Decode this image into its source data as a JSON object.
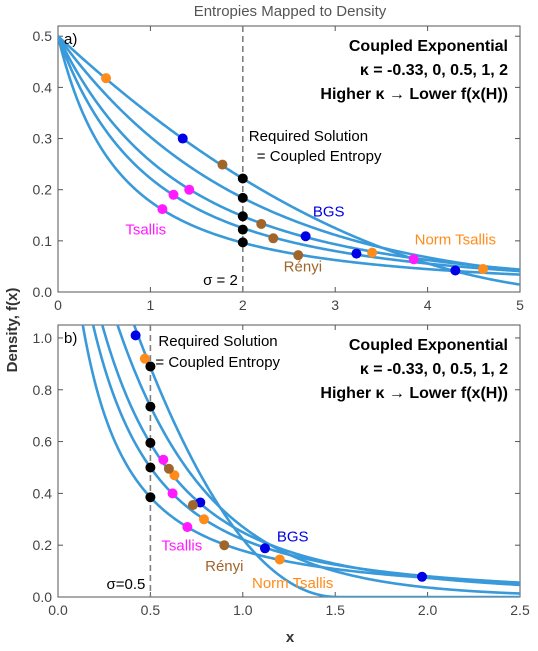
{
  "title": "Entropies Mapped to Density",
  "ylabel": "Density, f(x)",
  "xlabel": "x",
  "colors": {
    "curve": "#3a9ad9",
    "frame": "#555555",
    "guide": "#808080",
    "BGS": "#0000e6",
    "Norm Tsallis": "#ff8c1a",
    "Renyi": "#a0652a",
    "Tsallis": "#ff1aff",
    "Required": "#000000"
  },
  "chart_data": [
    {
      "type": "line",
      "panel_label": "a)",
      "x_range": [
        0,
        5
      ],
      "y_range": [
        0,
        0.52
      ],
      "xticks": [
        0,
        1,
        2,
        3,
        4,
        5
      ],
      "yticks": [
        0,
        0.1,
        0.2,
        0.3,
        0.4,
        0.5
      ],
      "ytick_labels": [
        "0.0",
        "0.1",
        "0.2",
        "0.3",
        "0.4",
        "0.5"
      ],
      "sigma": 2,
      "sigma_label": "σ = 2",
      "kappas": [
        -0.33,
        0,
        0.5,
        1,
        2
      ],
      "info": [
        "Coupled Exponential",
        "κ = -0.33, 0, 0.5, 1, 2",
        "Higher κ → Lower f(x(H))"
      ],
      "required_label": [
        "Required Solution",
        "= Coupled Entropy"
      ],
      "points": {
        "Required": [
          [
            2,
            0.222
          ],
          [
            2,
            0.184
          ],
          [
            2,
            0.148
          ],
          [
            2,
            0.122
          ],
          [
            2,
            0.097
          ]
        ],
        "BGS": [
          [
            1.35,
            0.3
          ],
          [
            2.68,
            0.109
          ],
          [
            3.23,
            0.075
          ],
          [
            4.3,
            0.042
          ]
        ],
        "Norm Tsallis": [
          [
            0.52,
            0.418
          ],
          [
            3.4,
            0.077
          ],
          [
            4.6,
            0.045
          ]
        ],
        "Renyi": [
          [
            1.78,
            0.249
          ],
          [
            2.2,
            0.133
          ],
          [
            2.33,
            0.105
          ],
          [
            2.6,
            0.072
          ]
        ],
        "Tsallis": [
          [
            1.13,
            0.162
          ],
          [
            1.25,
            0.19
          ],
          [
            1.42,
            0.2
          ],
          [
            3.85,
            0.064
          ]
        ]
      },
      "series_labels": [
        {
          "name": "BGS",
          "text": "BGS",
          "x": 2.93,
          "y": 0.148
        },
        {
          "name": "Tsallis",
          "text": "Tsallis",
          "x": 0.95,
          "y": 0.112
        },
        {
          "name": "Renyi",
          "text": "Rényi",
          "x": 2.65,
          "y": 0.04
        },
        {
          "name": "Norm Tsallis",
          "text": "Norm Tsallis",
          "x": 4.3,
          "y": 0.093
        }
      ]
    },
    {
      "type": "line",
      "panel_label": "b)",
      "x_range": [
        0,
        2.5
      ],
      "y_range": [
        0,
        1.05
      ],
      "xticks": [
        0,
        0.5,
        1,
        1.5,
        2,
        2.5
      ],
      "xtick_labels": [
        "0.0",
        "0.5",
        "1.0",
        "1.5",
        "2.0",
        "2.5"
      ],
      "yticks": [
        0,
        0.2,
        0.4,
        0.6,
        0.8,
        1
      ],
      "ytick_labels": [
        "0.0",
        "0.2",
        "0.4",
        "0.6",
        "0.8",
        "1.0"
      ],
      "sigma": 0.5,
      "sigma_label": "σ=0.5",
      "kappas": [
        -0.33,
        0,
        0.5,
        1,
        2
      ],
      "info": [
        "Coupled Exponential",
        "κ = -0.33, 0, 0.5, 1, 2",
        "Higher κ → Lower f(x(H))"
      ],
      "required_label": [
        "Required Solution",
        "= Coupled Entropy"
      ],
      "points": {
        "Required": [
          [
            0.5,
            0.89
          ],
          [
            0.5,
            0.735
          ],
          [
            0.5,
            0.595
          ],
          [
            0.5,
            0.5
          ],
          [
            0.5,
            0.385
          ]
        ],
        "BGS": [
          [
            0.42,
            1.01
          ],
          [
            0.77,
            0.365
          ],
          [
            1.12,
            0.188
          ],
          [
            1.97,
            0.078
          ]
        ],
        "Norm Tsallis": [
          [
            0.47,
            0.92
          ],
          [
            0.63,
            0.47
          ],
          [
            0.79,
            0.3
          ],
          [
            1.2,
            0.145
          ]
        ],
        "Renyi": [
          [
            0.6,
            0.495
          ],
          [
            0.73,
            0.355
          ],
          [
            0.9,
            0.2
          ]
        ],
        "Tsallis": [
          [
            0.57,
            0.53
          ],
          [
            0.62,
            0.4
          ],
          [
            0.7,
            0.27
          ]
        ]
      },
      "series_labels": [
        {
          "name": "BGS",
          "text": "BGS",
          "x": 1.27,
          "y": 0.215
        },
        {
          "name": "Tsallis",
          "text": "Tsallis",
          "x": 0.67,
          "y": 0.18
        },
        {
          "name": "Renyi",
          "text": "Rényi",
          "x": 0.9,
          "y": 0.1
        },
        {
          "name": "Norm Tsallis",
          "text": "Norm Tsallis",
          "x": 1.27,
          "y": 0.035
        }
      ]
    }
  ]
}
